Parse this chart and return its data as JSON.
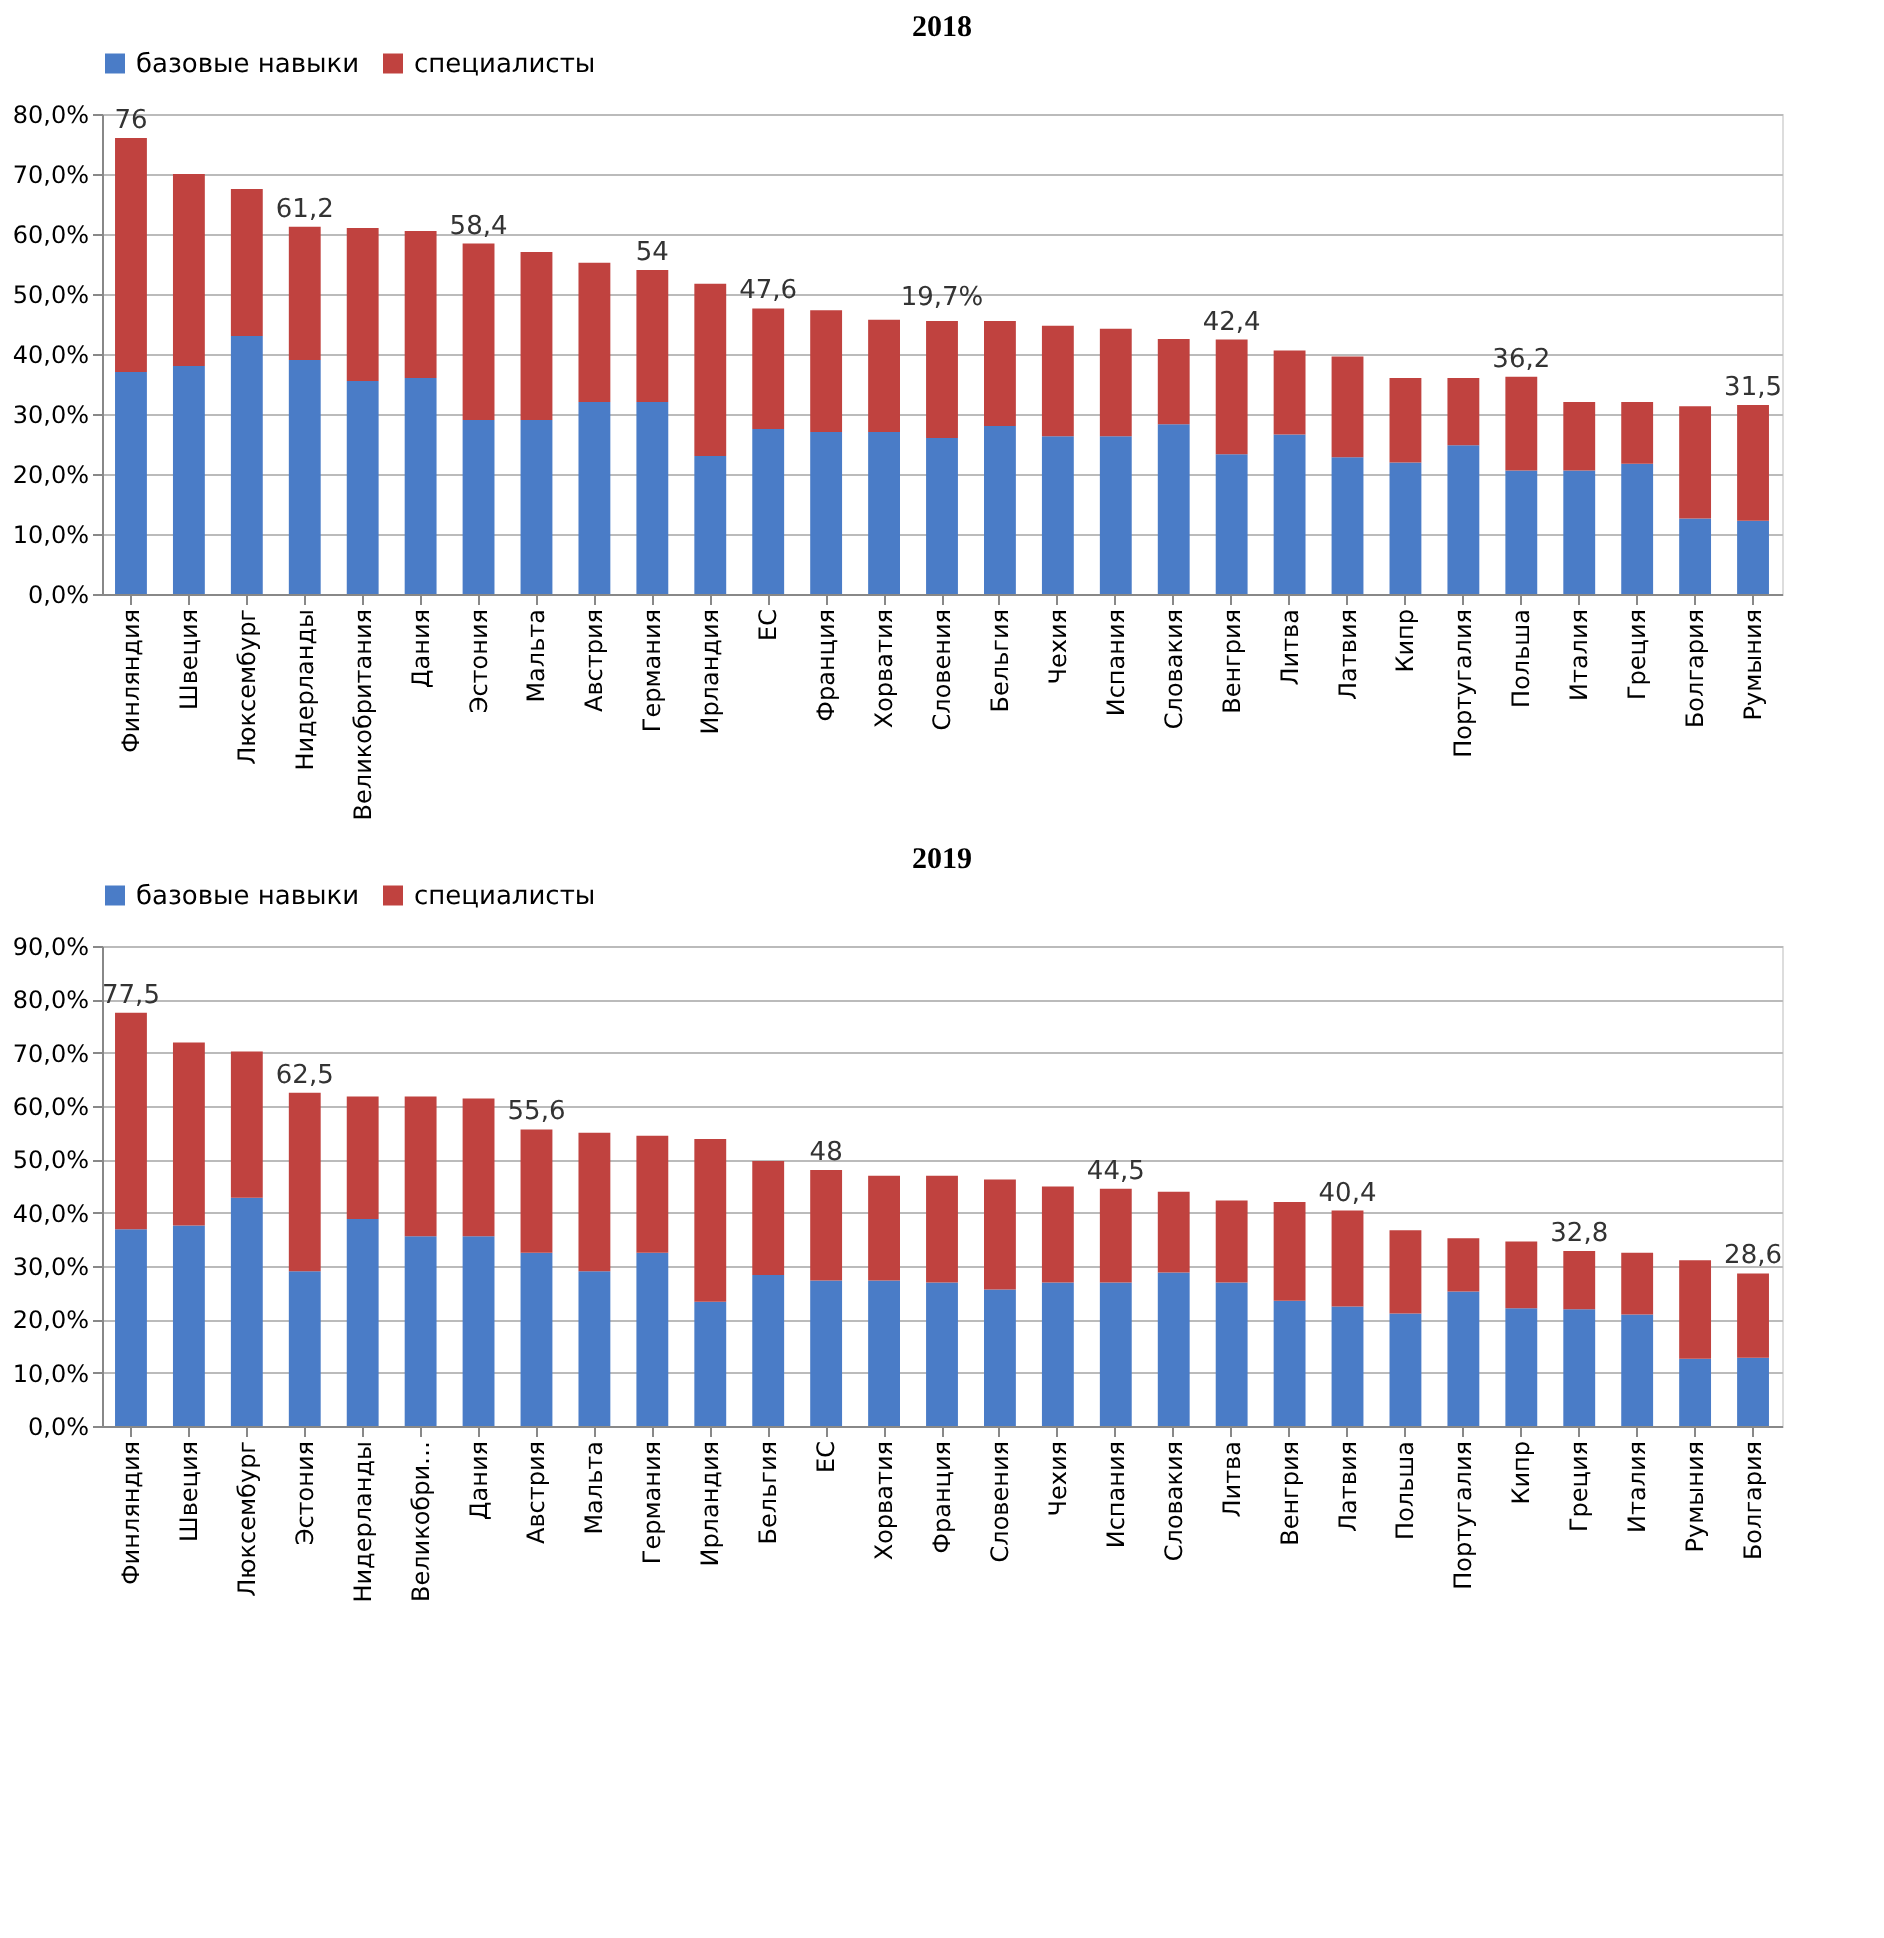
{
  "chart_data": [
    {
      "type": "bar",
      "title": "2018",
      "stacked": true,
      "legend": "top",
      "grid": "y",
      "categories": [
        "Финляндия",
        "Швеция",
        "Люксембург",
        "Нидерланды",
        "Великобритания",
        "Дания",
        "Эстония",
        "Мальта",
        "Австрия",
        "Германия",
        "Ирландия",
        "ЕС",
        "Франция",
        "Хорватия",
        "Словения",
        "Бельгия",
        "Чехия",
        "Испания",
        "Словакия",
        "Венгрия",
        "Литва",
        "Латвия",
        "Кипр",
        "Португалия",
        "Польша",
        "Италия",
        "Греция",
        "Болгария",
        "Румыния"
      ],
      "series": [
        {
          "name": "базовые навыки",
          "color": "#4a7cc7",
          "values": [
            37,
            38,
            43,
            39,
            35.5,
            36,
            29,
            29,
            32,
            32,
            23,
            27.5,
            27,
            27,
            26,
            28,
            26.3,
            26.3,
            28.3,
            23.3,
            26.6,
            22.8,
            21.9,
            24.8,
            20.6,
            20.6,
            21.7,
            12.6,
            12.2
          ]
        },
        {
          "name": "специалисты",
          "color": "#c0423f",
          "values": [
            39,
            32,
            24.5,
            22.2,
            25.5,
            24.5,
            29.4,
            28,
            23.2,
            22,
            28.7,
            20.1,
            20.3,
            18.7,
            19.5,
            17.5,
            18.4,
            17.9,
            14.2,
            19.1,
            14,
            16.8,
            14.1,
            11.2,
            15.6,
            11.4,
            10.3,
            18.7,
            19.3
          ]
        }
      ],
      "totals": [
        "76",
        null,
        null,
        "61,2",
        null,
        null,
        "58,4",
        null,
        null,
        "54",
        null,
        "47,6",
        null,
        null,
        null,
        null,
        null,
        null,
        null,
        "42,4",
        null,
        null,
        null,
        null,
        "36,2",
        null,
        null,
        null,
        "31,5"
      ],
      "annotations": [
        {
          "text": "19,7%",
          "x": "Словения",
          "y": 45.5
        }
      ],
      "ylim": [
        0,
        80
      ],
      "yticks": [
        {
          "value": 0,
          "label": "0,0%"
        },
        {
          "value": 10,
          "label": "10,0%"
        },
        {
          "value": 20,
          "label": "20,0%"
        },
        {
          "value": 30,
          "label": "30,0%"
        },
        {
          "value": 40,
          "label": "40,0%"
        },
        {
          "value": 50,
          "label": "50,0%"
        },
        {
          "value": 60,
          "label": "60,0%"
        },
        {
          "value": 70,
          "label": "70,0%"
        },
        {
          "value": 80,
          "label": "80,0%"
        }
      ]
    },
    {
      "type": "bar",
      "title": "2019",
      "stacked": true,
      "legend": "top",
      "grid": "y",
      "categories": [
        "Финляндия",
        "Швеция",
        "Люксембург",
        "Эстония",
        "Нидерланды",
        "Великобри…",
        "Дания",
        "Австрия",
        "Мальта",
        "Германия",
        "Ирландия",
        "Бельгия",
        "ЕС",
        "Хорватия",
        "Франция",
        "Словения",
        "Чехия",
        "Испания",
        "Словакия",
        "Литва",
        "Венгрия",
        "Латвия",
        "Польша",
        "Португалия",
        "Кипр",
        "Греция",
        "Италия",
        "Румыния",
        "Болгария"
      ],
      "series": [
        {
          "name": "базовые навыки",
          "color": "#4a7cc7",
          "values": [
            36.9,
            37.6,
            42.8,
            29,
            38.8,
            35.6,
            35.6,
            32.5,
            29,
            32.5,
            23.3,
            28.3,
            27.3,
            27.3,
            26.9,
            25.6,
            26.9,
            26.9,
            28.8,
            26.9,
            23.5,
            22.4,
            21.1,
            25.2,
            22.1,
            21.9,
            20.9,
            12.6,
            12.8
          ]
        },
        {
          "name": "специалисты",
          "color": "#c0423f",
          "values": [
            40.6,
            34.3,
            27.4,
            33.5,
            23,
            26.2,
            25.8,
            23.1,
            26,
            21.9,
            30.5,
            21.4,
            20.7,
            19.6,
            20,
            20.6,
            18,
            17.6,
            15.1,
            15.4,
            18.5,
            18,
            15.6,
            10,
            12.5,
            10.9,
            11.6,
            18.5,
            15.8
          ]
        }
      ],
      "totals": [
        "77,5",
        null,
        null,
        "62,5",
        null,
        null,
        null,
        "55,6",
        null,
        null,
        null,
        null,
        "48",
        null,
        null,
        null,
        null,
        "44,5",
        null,
        null,
        null,
        "40,4",
        null,
        null,
        null,
        "32,8",
        null,
        null,
        "28,6"
      ],
      "ylim": [
        0,
        90
      ],
      "yticks": [
        {
          "value": 0,
          "label": "0,0%"
        },
        {
          "value": 10,
          "label": "10,0%"
        },
        {
          "value": 20,
          "label": "20,0%"
        },
        {
          "value": 30,
          "label": "30,0%"
        },
        {
          "value": 40,
          "label": "40,0%"
        },
        {
          "value": 50,
          "label": "50,0%"
        },
        {
          "value": 60,
          "label": "60,0%"
        },
        {
          "value": 70,
          "label": "70,0%"
        },
        {
          "value": 80,
          "label": "80,0%"
        },
        {
          "value": 90,
          "label": "90,0%"
        }
      ]
    }
  ]
}
